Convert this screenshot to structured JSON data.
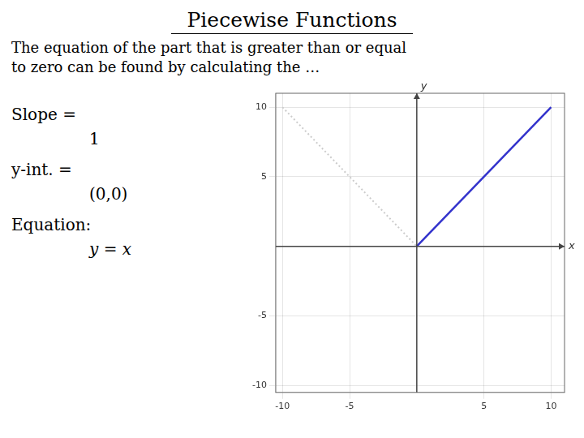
{
  "chart_data": {
    "type": "line",
    "title": "Piecewise Functions",
    "annotations": [
      "The equation of the part that is greater than or equal",
      "to zero can be found by calculating the …",
      "Slope =",
      "1",
      "y-int. =",
      "(0,0)",
      "Equation:",
      "y = x"
    ],
    "xlabel": "x",
    "ylabel": "y",
    "series": [
      {
        "color": "#3333cc",
        "line_style": "solid",
        "x": [
          0,
          10
        ],
        "values": [
          0,
          10
        ]
      },
      {
        "color": "#cccccc",
        "line_style": "dotted",
        "x": [
          -10,
          0
        ],
        "values": [
          10,
          0
        ]
      }
    ],
    "xlim": [
      -10.5,
      11
    ],
    "ylim": [
      -10.5,
      11
    ],
    "xticks": [
      -10,
      -5,
      5,
      10
    ],
    "yticks": [
      -10,
      -5,
      5,
      10
    ],
    "grid": true
  }
}
